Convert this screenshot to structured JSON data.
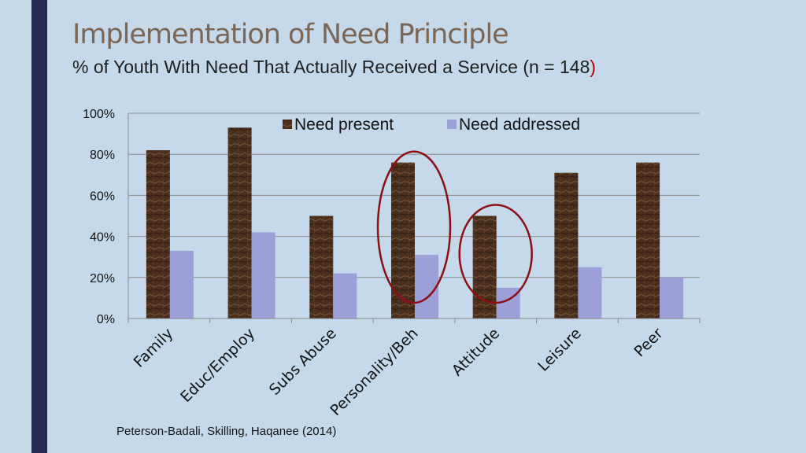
{
  "slide": {
    "title": "Implementation of Need Principle",
    "subtitle_main": "% of Youth With Need That Actually Received a Service (n = 148",
    "subtitle_paren": ")",
    "citation": "Peterson-Badali, Skilling, Haqanee (2014)"
  },
  "colors": {
    "background": "#c5d9ea",
    "accent_bar": "#252a52",
    "title": "#7b6656",
    "need_present": "#4a2e1c",
    "need_addressed": "#9d9fd8",
    "highlight_circle": "#8b0f14"
  },
  "chart_data": {
    "type": "bar",
    "categories": [
      "Family",
      "Educ/Employ",
      "Subs Abuse",
      "Personality/Beh",
      "Attitude",
      "Leisure",
      "Peer"
    ],
    "series": [
      {
        "name": "Need present",
        "values": [
          82,
          93,
          50,
          76,
          50,
          71,
          76
        ]
      },
      {
        "name": "Need addressed",
        "values": [
          33,
          42,
          22,
          31,
          15,
          25,
          20
        ]
      }
    ],
    "yticks": [
      "0%",
      "20%",
      "40%",
      "60%",
      "80%",
      "100%"
    ],
    "ylim": [
      0,
      100
    ],
    "grid": true,
    "legend_position": "top-center",
    "highlighted_categories": [
      "Personality/Beh",
      "Attitude"
    ]
  }
}
